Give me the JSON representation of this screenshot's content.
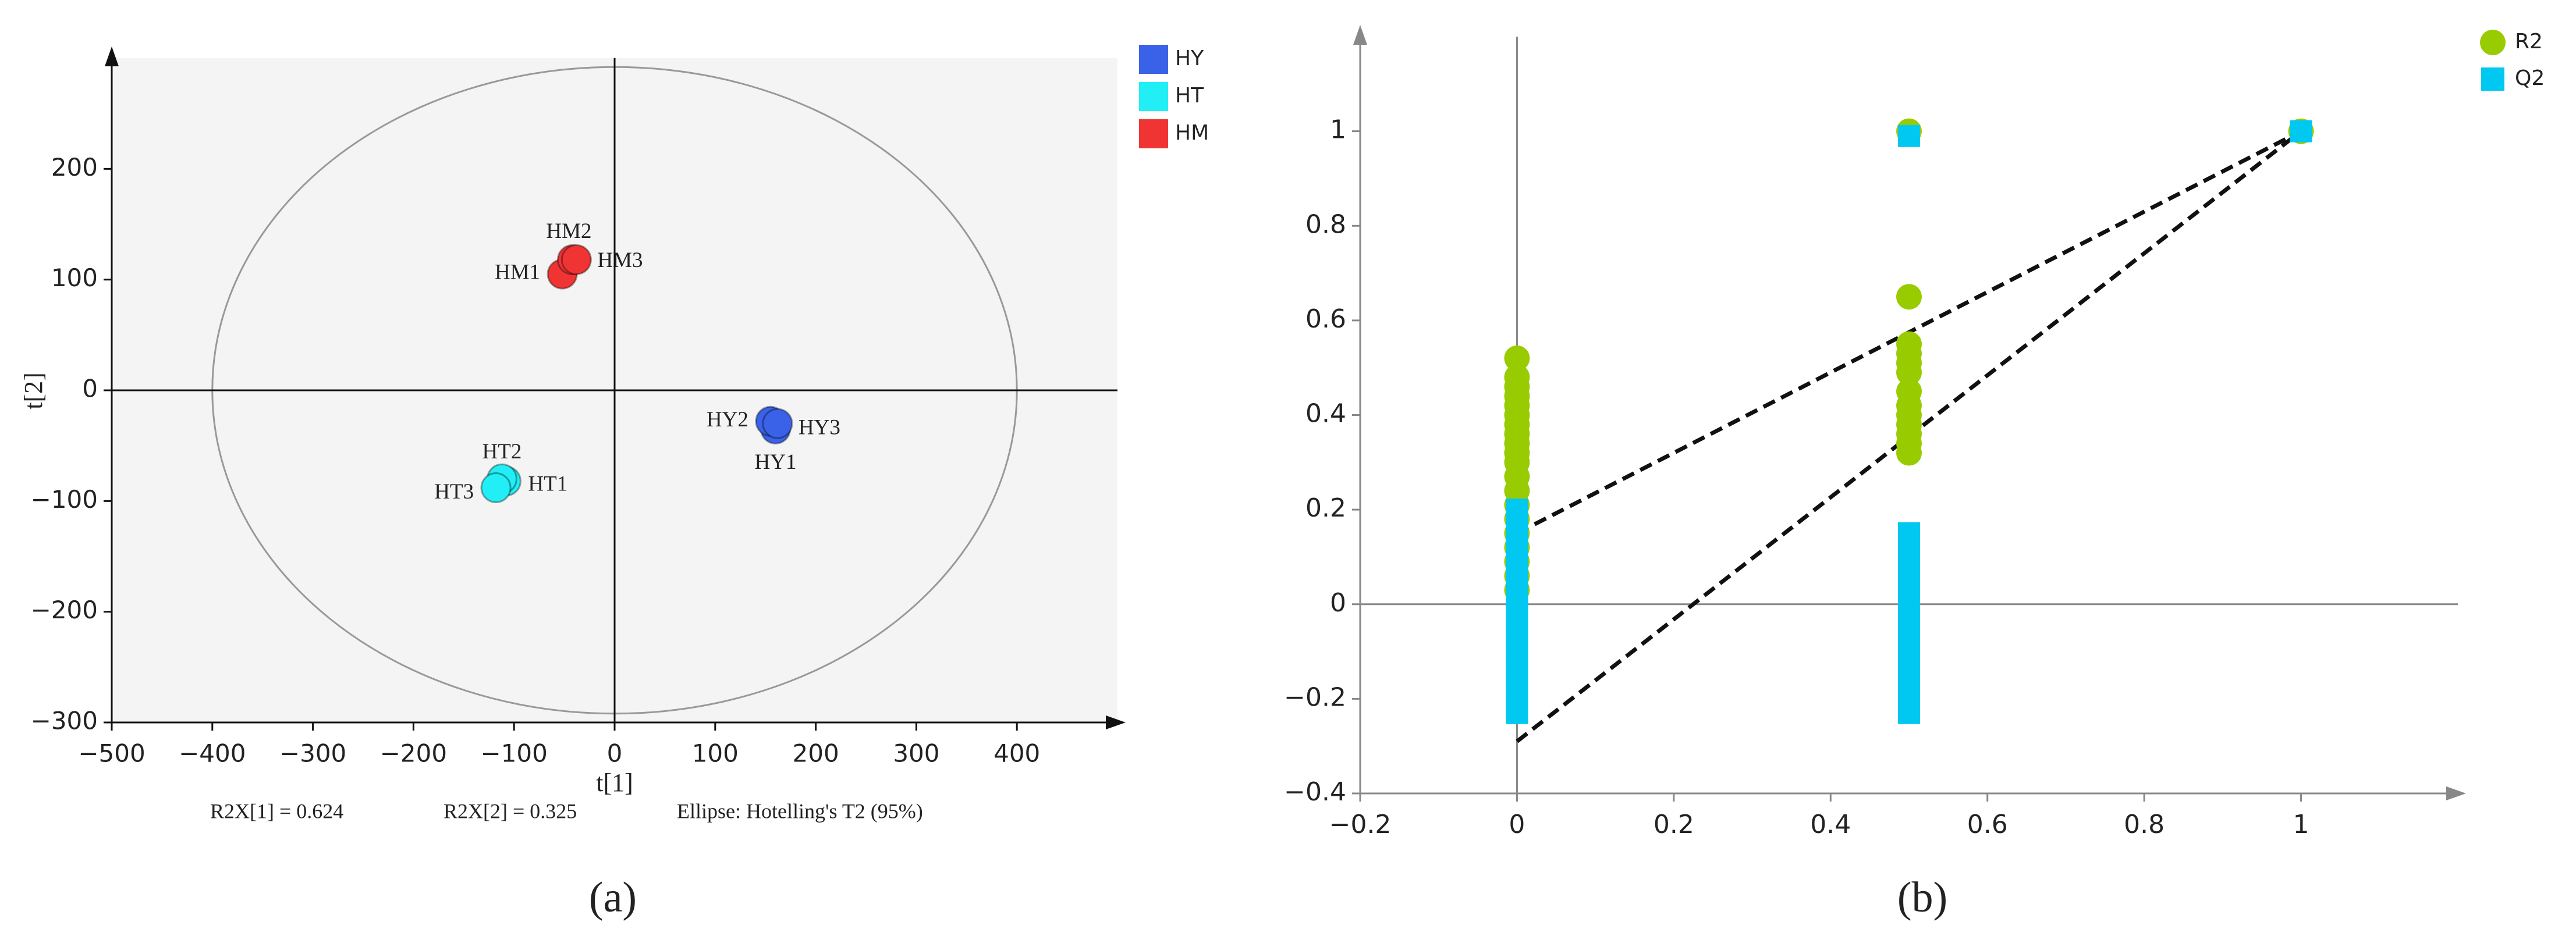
{
  "chart_data": [
    {
      "type": "scatter",
      "xlabel": "t[1]",
      "ylabel": "t[2]",
      "xlim": [
        -500,
        500
      ],
      "xticks": [
        {
          "value": -500,
          "label": "−500"
        },
        {
          "value": -400,
          "label": "−400"
        },
        {
          "value": -300,
          "label": "−300"
        },
        {
          "value": -200,
          "label": "−200"
        },
        {
          "value": -100,
          "label": "−100"
        },
        0,
        100,
        200,
        300,
        400
      ],
      "ylim": [
        -300,
        300
      ],
      "yticks": [
        {
          "value": -300,
          "label": "−300"
        },
        {
          "value": -200,
          "label": "−200"
        },
        {
          "value": -100,
          "label": "−100"
        },
        0,
        100,
        200
      ],
      "ellipse": {
        "rx": 400,
        "ry": 292
      },
      "footer": [
        "R2X[1] = 0.624",
        "R2X[2] = 0.325",
        "Ellipse: Hotelling's T2 (95%)"
      ],
      "caption": "(a)",
      "series": [
        {
          "name": "HY",
          "color": "#3a62e8",
          "label_color": "#2a4db8",
          "labels": [
            "HY1",
            "HY2",
            "HY3"
          ],
          "x": [
            160,
            155,
            162
          ],
          "values": [
            -35,
            -28,
            -30
          ]
        },
        {
          "name": "HT",
          "color": "#22eef5",
          "label_color": "#1fb0b0",
          "labels": [
            "HT1",
            "HT2",
            "HT3"
          ],
          "x": [
            -108,
            -112,
            -118
          ],
          "values": [
            -82,
            -80,
            -88
          ]
        },
        {
          "name": "HM",
          "color": "#f03434",
          "label_color": "#d03a3a",
          "labels": [
            "HM1",
            "HM2",
            "HM3"
          ],
          "x": [
            -52,
            -42,
            -38
          ],
          "values": [
            105,
            118,
            118
          ]
        }
      ]
    },
    {
      "type": "scatter",
      "xlim": [
        -0.2,
        1.2
      ],
      "xticks": [
        {
          "value": -0.2,
          "label": "−0.2"
        },
        0,
        0.2,
        0.4,
        0.6,
        0.8,
        1
      ],
      "ylim": [
        -0.4,
        1.2
      ],
      "yticks": [
        {
          "value": -0.4,
          "label": "−0.4"
        },
        {
          "value": -0.2,
          "label": "−0.2"
        },
        0,
        0.2,
        0.4,
        0.6,
        0.8,
        1
      ],
      "caption": "(b)",
      "series": [
        {
          "name": "R2",
          "color": "#99cc00",
          "marker": "circle",
          "x": [
            0,
            0,
            0,
            0,
            0,
            0,
            0,
            0,
            0,
            0,
            0,
            0,
            0,
            0,
            0,
            0,
            0,
            0,
            0,
            0,
            0.5,
            0.5,
            0.5,
            0.5,
            0.5,
            0.5,
            0.5,
            0.5,
            0.5,
            0.5,
            0.5,
            0.5,
            0.5,
            1
          ],
          "values": [
            0.52,
            0.48,
            0.46,
            0.44,
            0.42,
            0.4,
            0.38,
            0.36,
            0.34,
            0.32,
            0.3,
            0.27,
            0.24,
            0.21,
            0.18,
            0.15,
            0.12,
            0.09,
            0.06,
            0.03,
            1,
            0.65,
            0.55,
            0.53,
            0.51,
            0.49,
            0.45,
            0.42,
            0.4,
            0.38,
            0.36,
            0.34,
            0.32,
            1
          ]
        },
        {
          "name": "Q2",
          "color": "#00c8f0",
          "marker": "square",
          "x": [
            0,
            0,
            0,
            0,
            0,
            0,
            0,
            0,
            0,
            0,
            0,
            0,
            0,
            0,
            0,
            0,
            0.5,
            0.5,
            0.5,
            0.5,
            0.5,
            0.5,
            0.5,
            0.5,
            0.5,
            0.5,
            0.5,
            0.5,
            0.5,
            0.5,
            0.5,
            1
          ],
          "values": [
            0.2,
            0.17,
            0.14,
            0.11,
            0.08,
            0.05,
            0.02,
            -0.01,
            -0.04,
            -0.07,
            -0.1,
            -0.13,
            -0.16,
            -0.19,
            -0.22,
            -0.23,
            0.99,
            0.15,
            0.12,
            0.09,
            0.06,
            0.03,
            0,
            -0.03,
            -0.06,
            -0.09,
            -0.12,
            -0.15,
            -0.18,
            -0.21,
            -0.23,
            1
          ]
        }
      ],
      "lines": [
        {
          "x": [
            0,
            1
          ],
          "values": [
            0.15,
            1
          ]
        },
        {
          "x": [
            0,
            1
          ],
          "values": [
            -0.29,
            1
          ]
        }
      ]
    }
  ]
}
